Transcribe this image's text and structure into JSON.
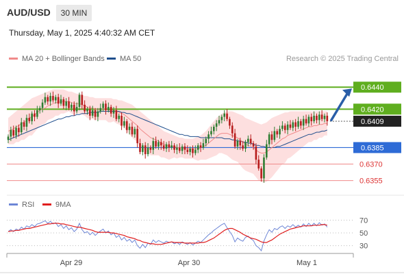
{
  "header": {
    "symbol": "AUD/USD",
    "timeframe": "30 MIN"
  },
  "timestamp": "Thursday, May 1, 2025 4:40:32 AM CET",
  "legend": {
    "ma20": {
      "label": "MA 20 + Bollinger Bands",
      "color": "#f08a8a"
    },
    "ma50": {
      "label": "MA 50",
      "color": "#1f4e8c"
    },
    "rsi": {
      "label": "RSI",
      "color": "#6d86d6"
    },
    "rsi_ma": {
      "label": "9MA",
      "color": "#e01d1d"
    }
  },
  "credit": "Research © 2025 Trading Central",
  "colors": {
    "up": "#2e7d32",
    "down": "#b71c1c",
    "band_fill": "#fdd9d9",
    "resistance": "#5fae1f",
    "support_strong": "#2e6bd6",
    "support_weak": "#f08a8a",
    "arrow": "#2a5ea8",
    "current_price_tag": "#222222"
  },
  "chart_data": [
    {
      "type": "candlestick",
      "y_range": [
        0.6346,
        0.6452
      ],
      "x_labels": [
        "Apr 29",
        "Apr 30",
        "May 1"
      ],
      "current_price": "0.6409",
      "levels": [
        {
          "value": 0.644,
          "label": "0.6440",
          "kind": "resistance"
        },
        {
          "value": 0.642,
          "label": "0.6420",
          "kind": "resistance"
        },
        {
          "value": 0.6385,
          "label": "0.6385",
          "kind": "support"
        },
        {
          "value": 0.637,
          "label": "0.6370",
          "kind": "support"
        },
        {
          "value": 0.6355,
          "label": "0.6355",
          "kind": "support"
        }
      ],
      "forecast_target": 0.644,
      "close": [
        0.6395,
        0.6401,
        0.6396,
        0.6403,
        0.6399,
        0.6408,
        0.6404,
        0.6412,
        0.6409,
        0.6416,
        0.6413,
        0.6419,
        0.6421,
        0.6426,
        0.6431,
        0.6427,
        0.6432,
        0.6428,
        0.6431,
        0.6425,
        0.6429,
        0.6423,
        0.6427,
        0.6421,
        0.6424,
        0.6418,
        0.6422,
        0.6433,
        0.6424,
        0.6418,
        0.642,
        0.6414,
        0.6419,
        0.6413,
        0.6418,
        0.6421,
        0.6425,
        0.6419,
        0.6422,
        0.6416,
        0.6419,
        0.6411,
        0.6414,
        0.6405,
        0.6409,
        0.6401,
        0.6404,
        0.6397,
        0.6402,
        0.6389,
        0.6381,
        0.6387,
        0.6379,
        0.6385,
        0.6383,
        0.6391,
        0.6386,
        0.639,
        0.6387,
        0.6384,
        0.6388,
        0.6385,
        0.6387,
        0.6383,
        0.6385,
        0.6382,
        0.6386,
        0.6383,
        0.6381,
        0.6384,
        0.638,
        0.6383,
        0.6387,
        0.6385,
        0.6389,
        0.6393,
        0.6397,
        0.64,
        0.6404,
        0.6407,
        0.641,
        0.6413,
        0.6416,
        0.6411,
        0.6405,
        0.6398,
        0.6386,
        0.6391,
        0.6387,
        0.6384,
        0.639,
        0.6393,
        0.6389,
        0.6386,
        0.6374,
        0.6366,
        0.6357,
        0.6376,
        0.6388,
        0.6397,
        0.6392,
        0.64,
        0.6397,
        0.6402,
        0.6405,
        0.6401,
        0.6406,
        0.6403,
        0.6408,
        0.6404,
        0.6409,
        0.6405,
        0.6411,
        0.6407,
        0.6413,
        0.6409,
        0.6414,
        0.641,
        0.6415,
        0.6411,
        0.6414,
        0.6409
      ],
      "ma20": [
        0.64,
        0.6401,
        0.6402,
        0.6404,
        0.6405,
        0.6407,
        0.6408,
        0.641,
        0.6412,
        0.6413,
        0.6415,
        0.6417,
        0.6419,
        0.642,
        0.6421,
        0.6423,
        0.6424,
        0.6425,
        0.6426,
        0.6426,
        0.6427,
        0.6427,
        0.6427,
        0.6427,
        0.6426,
        0.6425,
        0.6425,
        0.6425,
        0.6424,
        0.6423,
        0.6422,
        0.6421,
        0.6421,
        0.642,
        0.642,
        0.642,
        0.642,
        0.642,
        0.6419,
        0.6419,
        0.6419,
        0.6418,
        0.6417,
        0.6416,
        0.6415,
        0.6413,
        0.6411,
        0.6409,
        0.6407,
        0.6405,
        0.6402,
        0.64,
        0.6398,
        0.6396,
        0.6394,
        0.6393,
        0.6392,
        0.6391,
        0.6389,
        0.6388,
        0.6387,
        0.6386,
        0.6386,
        0.6386,
        0.6385,
        0.6385,
        0.6385,
        0.6384,
        0.6384,
        0.6384,
        0.6384,
        0.6384,
        0.6384,
        0.6385,
        0.6386,
        0.6387,
        0.6389,
        0.6391,
        0.6393,
        0.6395,
        0.6397,
        0.6398,
        0.6398,
        0.6398,
        0.6397,
        0.6396,
        0.6395,
        0.6394,
        0.6392,
        0.639,
        0.6388,
        0.6387,
        0.6386,
        0.6385,
        0.6383,
        0.6381,
        0.638,
        0.638,
        0.6381,
        0.6383,
        0.6385,
        0.6387,
        0.6389,
        0.6391,
        0.6393,
        0.6394,
        0.6396,
        0.6397,
        0.6398,
        0.6399,
        0.64,
        0.6401,
        0.6402,
        0.6403,
        0.6404,
        0.6404,
        0.6405,
        0.6405,
        0.6406,
        0.6406,
        0.6407,
        0.6407
      ],
      "ma50": [
        0.6392,
        0.6393,
        0.6394,
        0.6395,
        0.6396,
        0.6397,
        0.6398,
        0.6399,
        0.64,
        0.6401,
        0.6402,
        0.6403,
        0.6404,
        0.6405,
        0.6406,
        0.6407,
        0.6408,
        0.6409,
        0.641,
        0.6411,
        0.6411,
        0.6412,
        0.6413,
        0.6413,
        0.6414,
        0.6414,
        0.6415,
        0.6415,
        0.6416,
        0.6416,
        0.6416,
        0.6417,
        0.6417,
        0.6417,
        0.6417,
        0.6418,
        0.6418,
        0.6418,
        0.6418,
        0.6418,
        0.6418,
        0.6418,
        0.6418,
        0.6417,
        0.6417,
        0.6416,
        0.6416,
        0.6415,
        0.6414,
        0.6413,
        0.6412,
        0.6411,
        0.641,
        0.6409,
        0.6408,
        0.6407,
        0.6406,
        0.6405,
        0.6404,
        0.6403,
        0.6402,
        0.6401,
        0.64,
        0.6399,
        0.6398,
        0.6397,
        0.6397,
        0.6396,
        0.6396,
        0.6395,
        0.6395,
        0.6395,
        0.6395,
        0.6394,
        0.6394,
        0.6394,
        0.6394,
        0.6394,
        0.6394,
        0.6394,
        0.6394,
        0.6394,
        0.6393,
        0.6393,
        0.6393,
        0.6392,
        0.6392,
        0.6391,
        0.6391,
        0.639,
        0.639,
        0.6389,
        0.6389,
        0.6388,
        0.6387,
        0.6387,
        0.6386,
        0.6386,
        0.6385,
        0.6385,
        0.6385,
        0.6385,
        0.6386,
        0.6386,
        0.6387,
        0.6388,
        0.6389,
        0.639,
        0.6391,
        0.6392,
        0.6393,
        0.6394,
        0.6395,
        0.6396,
        0.6397,
        0.6397,
        0.6398,
        0.6399,
        0.6399,
        0.64,
        0.64,
        0.6401
      ],
      "bb_upper": [
        0.6412,
        0.6414,
        0.6416,
        0.6418,
        0.642,
        0.6422,
        0.6424,
        0.6426,
        0.6428,
        0.643,
        0.6431,
        0.6432,
        0.6433,
        0.6434,
        0.6435,
        0.6436,
        0.6437,
        0.6438,
        0.6438,
        0.6438,
        0.6438,
        0.6438,
        0.6437,
        0.6436,
        0.6436,
        0.6435,
        0.6434,
        0.6434,
        0.6433,
        0.6432,
        0.6432,
        0.6431,
        0.6431,
        0.643,
        0.643,
        0.643,
        0.643,
        0.643,
        0.643,
        0.643,
        0.6429,
        0.6429,
        0.6428,
        0.6428,
        0.6427,
        0.6426,
        0.6425,
        0.6424,
        0.6422,
        0.642,
        0.6418,
        0.6416,
        0.6414,
        0.6412,
        0.641,
        0.6408,
        0.6406,
        0.6404,
        0.6402,
        0.64,
        0.6399,
        0.6398,
        0.6397,
        0.6396,
        0.6395,
        0.6394,
        0.6394,
        0.6393,
        0.6393,
        0.6393,
        0.6393,
        0.6394,
        0.6395,
        0.6396,
        0.6398,
        0.64,
        0.6403,
        0.6406,
        0.6409,
        0.6412,
        0.6414,
        0.6416,
        0.6417,
        0.6418,
        0.6418,
        0.6418,
        0.6417,
        0.6416,
        0.6415,
        0.6414,
        0.6412,
        0.6411,
        0.641,
        0.6409,
        0.6408,
        0.6407,
        0.6406,
        0.6407,
        0.6408,
        0.641,
        0.6412,
        0.6413,
        0.6414,
        0.6415,
        0.6416,
        0.6417,
        0.6417,
        0.6418,
        0.6418,
        0.6418,
        0.6418,
        0.6418,
        0.6418,
        0.6418,
        0.6418,
        0.6418,
        0.6418,
        0.6418,
        0.6418,
        0.6418,
        0.6418,
        0.6418
      ],
      "bb_lower": [
        0.6388,
        0.6388,
        0.6388,
        0.639,
        0.639,
        0.6392,
        0.6392,
        0.6394,
        0.6396,
        0.6396,
        0.6399,
        0.6402,
        0.6405,
        0.6406,
        0.6407,
        0.641,
        0.6411,
        0.6412,
        0.6414,
        0.6414,
        0.6416,
        0.6416,
        0.6417,
        0.6418,
        0.6416,
        0.6415,
        0.6416,
        0.6416,
        0.6415,
        0.6414,
        0.6412,
        0.6411,
        0.6411,
        0.641,
        0.641,
        0.641,
        0.641,
        0.641,
        0.6408,
        0.6408,
        0.6409,
        0.6407,
        0.6406,
        0.6404,
        0.6403,
        0.64,
        0.6397,
        0.6394,
        0.6392,
        0.639,
        0.6386,
        0.6384,
        0.6382,
        0.638,
        0.6378,
        0.6378,
        0.6378,
        0.6378,
        0.6376,
        0.6376,
        0.6375,
        0.6374,
        0.6375,
        0.6376,
        0.6375,
        0.6376,
        0.6376,
        0.6375,
        0.6375,
        0.6375,
        0.6375,
        0.6374,
        0.6373,
        0.6374,
        0.6374,
        0.6374,
        0.6375,
        0.6376,
        0.6377,
        0.6378,
        0.638,
        0.638,
        0.6379,
        0.6378,
        0.6376,
        0.6374,
        0.6373,
        0.6372,
        0.6369,
        0.6366,
        0.6364,
        0.6363,
        0.6362,
        0.6361,
        0.6358,
        0.6355,
        0.6354,
        0.6353,
        0.6354,
        0.6356,
        0.6358,
        0.6361,
        0.6364,
        0.6367,
        0.637,
        0.6371,
        0.6375,
        0.6376,
        0.6378,
        0.638,
        0.6382,
        0.6384,
        0.6386,
        0.6388,
        0.639,
        0.639,
        0.6392,
        0.6392,
        0.6394,
        0.6394,
        0.6396,
        0.6396
      ]
    },
    {
      "type": "line",
      "y_range": [
        20,
        80
      ],
      "y_ticks": [
        "70",
        "50",
        "30"
      ],
      "rsi": [
        52,
        55,
        52,
        56,
        54,
        59,
        56,
        61,
        59,
        63,
        60,
        64,
        65,
        67,
        69,
        65,
        68,
        64,
        66,
        60,
        63,
        57,
        61,
        55,
        58,
        52,
        56,
        65,
        55,
        50,
        52,
        47,
        51,
        46,
        50,
        53,
        56,
        50,
        53,
        47,
        50,
        43,
        46,
        39,
        43,
        37,
        40,
        35,
        39,
        30,
        26,
        32,
        27,
        34,
        32,
        39,
        35,
        38,
        36,
        34,
        37,
        35,
        36,
        33,
        35,
        32,
        36,
        34,
        32,
        35,
        31,
        34,
        37,
        35,
        39,
        43,
        47,
        50,
        54,
        57,
        60,
        63,
        65,
        58,
        52,
        46,
        36,
        42,
        39,
        37,
        43,
        45,
        41,
        38,
        30,
        27,
        22,
        37,
        47,
        55,
        51,
        57,
        55,
        59,
        61,
        57,
        61,
        59,
        63,
        59,
        62,
        59,
        64,
        60,
        65,
        61,
        65,
        61,
        66,
        62,
        64,
        59
      ],
      "rsi_ma": [
        52,
        53,
        53,
        54,
        54,
        55,
        56,
        57,
        57,
        58,
        59,
        60,
        61,
        62,
        63,
        64,
        64,
        65,
        65,
        65,
        64,
        64,
        63,
        62,
        61,
        60,
        59,
        59,
        58,
        57,
        56,
        55,
        54,
        52,
        51,
        51,
        51,
        51,
        51,
        50,
        50,
        49,
        48,
        47,
        46,
        44,
        43,
        42,
        41,
        39,
        38,
        36,
        35,
        34,
        33,
        33,
        32,
        32,
        32,
        33,
        34,
        35,
        36,
        35,
        35,
        35,
        35,
        34,
        34,
        34,
        34,
        34,
        34,
        35,
        35,
        36,
        38,
        40,
        42,
        45,
        48,
        51,
        54,
        56,
        57,
        57,
        55,
        53,
        51,
        48,
        46,
        44,
        42,
        41,
        40,
        38,
        36,
        35,
        35,
        37,
        39,
        42,
        45,
        48,
        50,
        52,
        54,
        56,
        57,
        58,
        59,
        60,
        61,
        61,
        61,
        61,
        62,
        62,
        62,
        63,
        63,
        62
      ]
    }
  ],
  "axis_labels": [
    "Apr 29",
    "Apr 30",
    "May 1"
  ]
}
